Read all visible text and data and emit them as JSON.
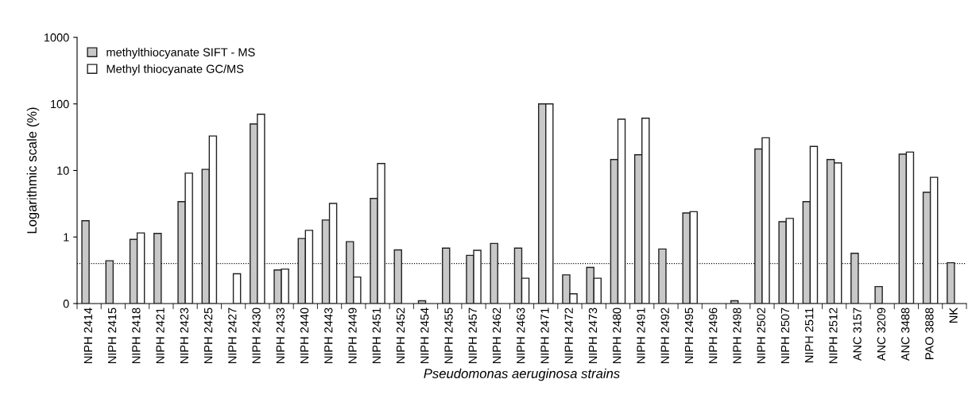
{
  "chart_data": {
    "type": "bar",
    "xlabel": "Pseudomonas aeruginosa strains",
    "ylabel": "Logarithmic scale (%)",
    "categories": [
      "NIPH 2414",
      "NIPH 2415",
      "NIPH 2418",
      "NIPH 2421",
      "NIPH 2423",
      "NIPH 2425",
      "NIPH 2427",
      "NIPH 2430",
      "NIPH 2433",
      "NIPH 2440",
      "NIPH 2443",
      "NIPH 2449",
      "NIPH 2451",
      "NIPH 2452",
      "NIPH 2454",
      "NIPH 2455",
      "NIPH 2457",
      "NIPH 2462",
      "NIPH 2463",
      "NIPH 2471",
      "NIPH 2472",
      "NIPH 2473",
      "NIPH 2480",
      "NIPH 2491",
      "NIPH 2492",
      "NIPH 2495",
      "NIPH 2496",
      "NIPH 2498",
      "NIPH 2502",
      "NIPH 2507",
      "NIPH 2511",
      "NIPH 2512",
      "ANC 3157",
      "ANC 3209",
      "ANC 3488",
      "PAO 3888",
      "NK"
    ],
    "series": [
      {
        "name": "methylthiocyanate SIFT - MS",
        "color": "#c8c8c8",
        "values": [
          1.76,
          0.44,
          0.92,
          1.13,
          3.4,
          10.4,
          null,
          50,
          0.32,
          0.95,
          1.8,
          0.85,
          3.8,
          0.64,
          0.11,
          0.68,
          0.53,
          0.8,
          0.68,
          100,
          0.27,
          0.35,
          14.6,
          17.2,
          0.66,
          2.3,
          null,
          0.11,
          21,
          1.7,
          3.4,
          14.6,
          0.57,
          0.18,
          17.6,
          4.7,
          0.41
        ]
      },
      {
        "name": "Methyl thiocyanate GC/MS",
        "color": "#ffffff",
        "values": [
          null,
          null,
          1.15,
          null,
          9.1,
          33,
          0.28,
          70,
          0.33,
          1.26,
          3.2,
          0.25,
          12.7,
          null,
          null,
          null,
          0.63,
          null,
          0.24,
          100,
          0.14,
          0.24,
          59,
          61,
          null,
          2.4,
          null,
          null,
          31,
          1.9,
          23,
          13,
          null,
          null,
          18.9,
          7.9,
          null
        ]
      }
    ],
    "log": "y",
    "ylim": [
      0.1,
      1000
    ],
    "yticks": [
      {
        "value": 0.1,
        "label": "0"
      },
      1,
      10,
      100,
      1000
    ],
    "ref_lines": [
      {
        "axis": "y",
        "value": 0.4,
        "line_style": "dotted",
        "color": "#000000"
      }
    ],
    "legend": "top left",
    "grid": false
  }
}
